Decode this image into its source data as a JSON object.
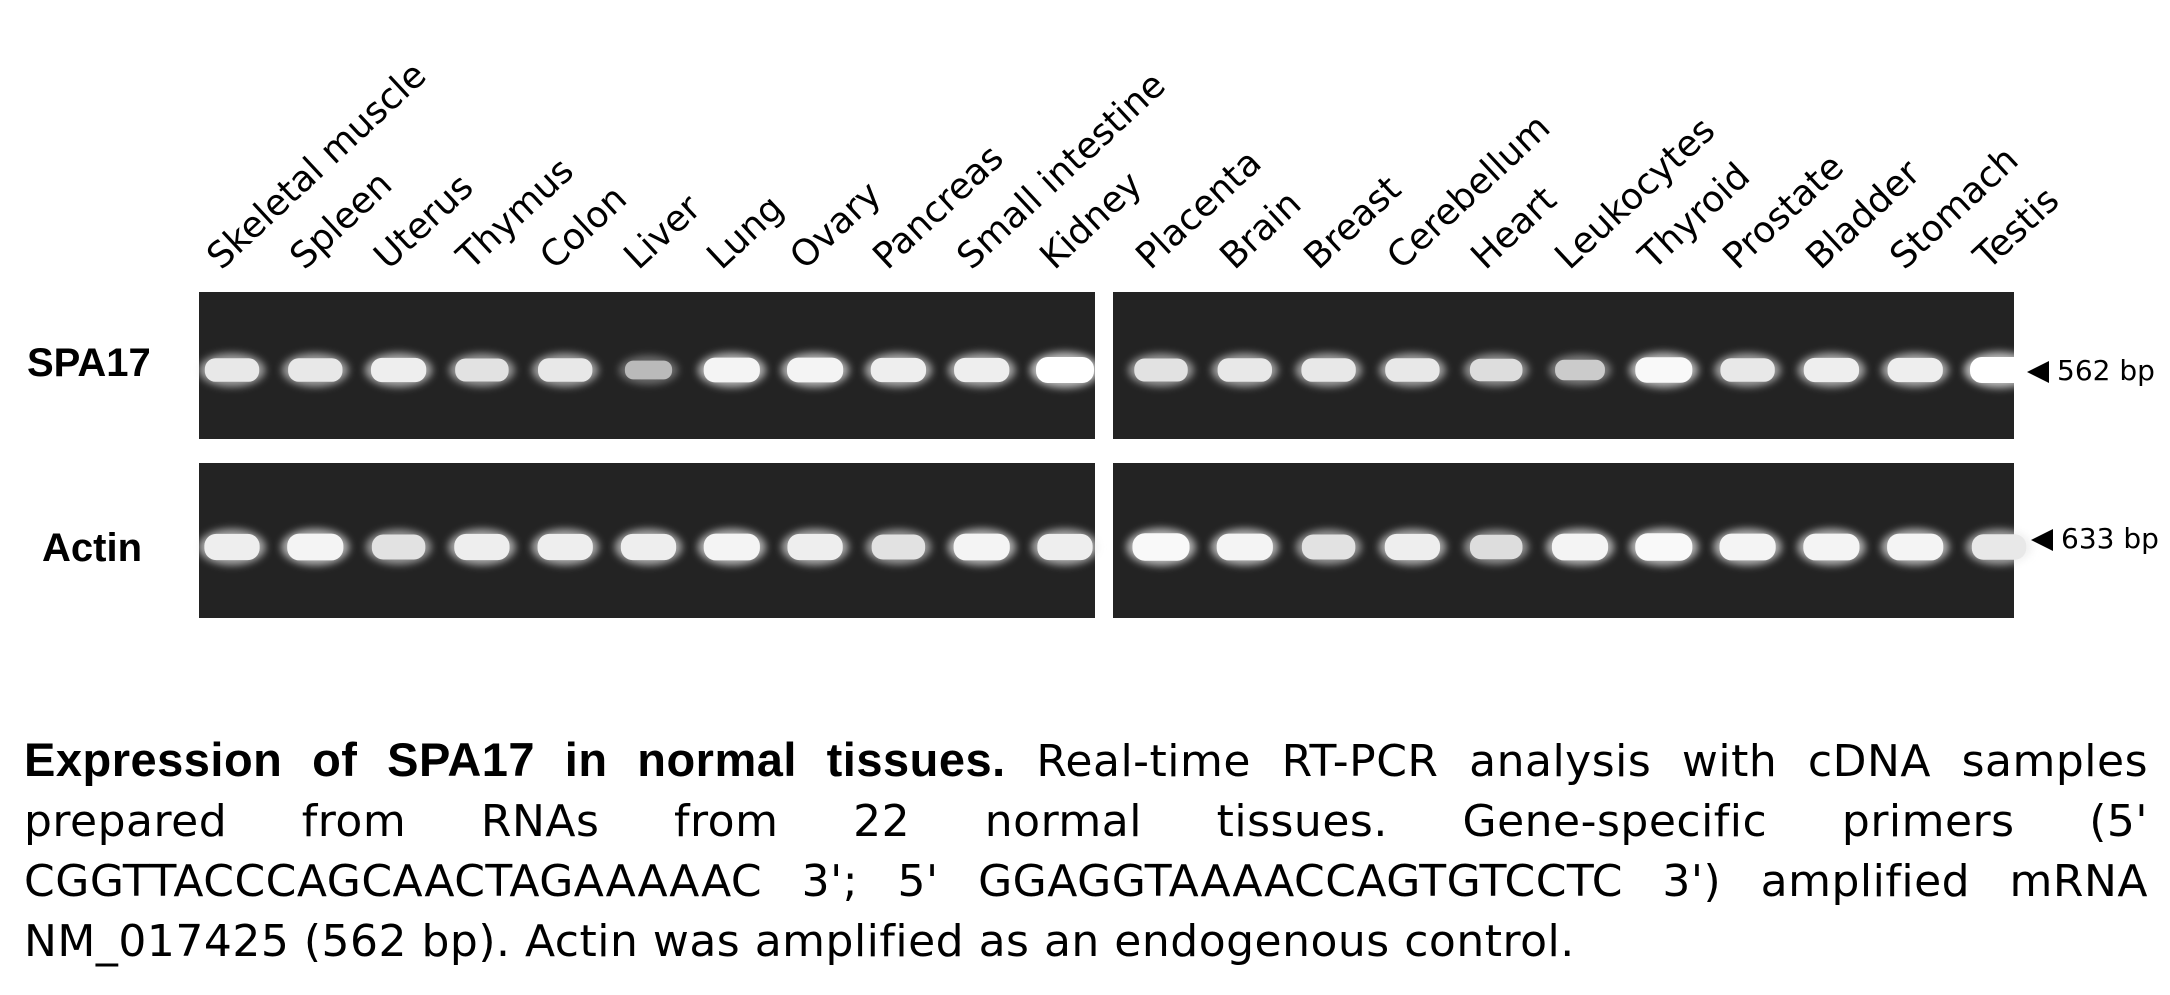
{
  "figure": {
    "lanes": [
      "Skeletal muscle",
      "Spleen",
      "Uterus",
      "Thymus",
      "Colon",
      "Liver",
      "Lung",
      "Ovary",
      "Pancreas",
      "Small intestine",
      "Kidney",
      "Placenta",
      "Brain",
      "Breast",
      "Cerebellum",
      "Heart",
      "Leukocytes",
      "Thyroid",
      "Prostate",
      "Bladder",
      "Stomach",
      "Testis"
    ],
    "rows": [
      {
        "label": "SPA17",
        "size": "562 bp",
        "band_intensity": [
          0.8,
          0.8,
          0.85,
          0.75,
          0.8,
          0.4,
          0.9,
          0.9,
          0.85,
          0.85,
          1.0,
          0.75,
          0.8,
          0.8,
          0.8,
          0.7,
          0.55,
          0.95,
          0.8,
          0.85,
          0.85,
          1.0
        ]
      },
      {
        "label": "Actin",
        "size": "633 bp",
        "band_intensity": [
          0.85,
          0.9,
          0.75,
          0.85,
          0.85,
          0.85,
          0.9,
          0.85,
          0.75,
          0.9,
          0.85,
          0.95,
          0.9,
          0.75,
          0.85,
          0.7,
          0.9,
          0.95,
          0.9,
          0.9,
          0.9,
          0.8
        ]
      }
    ]
  },
  "caption": {
    "bold": "Expression of SPA17 in normal tissues.",
    "text": " Real-time RT-PCR  analysis with cDNA samples prepared from RNAs from 22 normal tissues. Gene-specific primers (5' CGGTTACCCAGCAACTAGAAAAAC 3'; 5' GGAGGTAAAACCAGTGTCCTC 3') amplified mRNA NM_017425 (562 bp). Actin was amplified as an endogenous control."
  }
}
